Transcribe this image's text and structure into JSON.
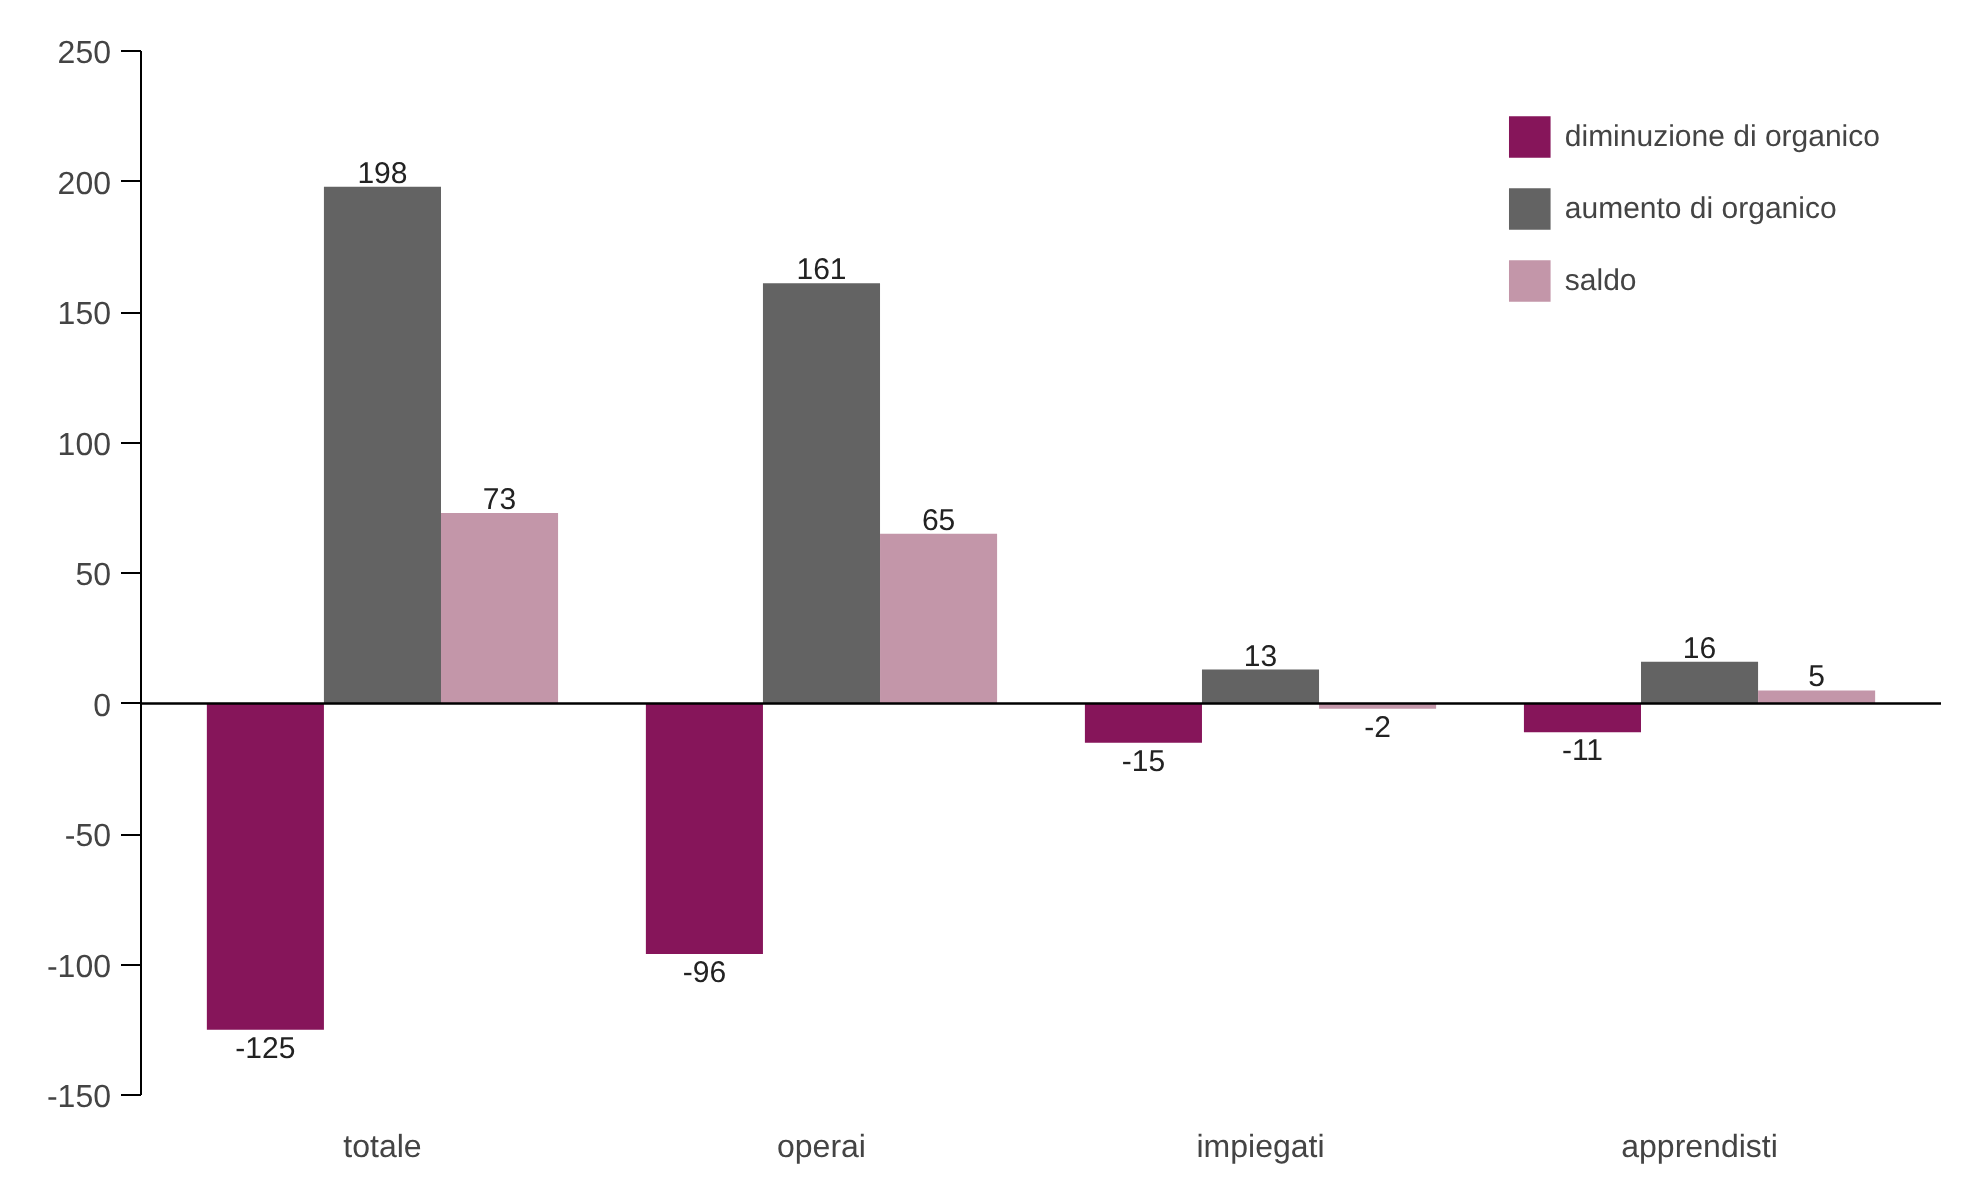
{
  "chart_data": {
    "type": "bar",
    "categories": [
      "totale",
      "operai",
      "impiegati",
      "apprendisti"
    ],
    "series": [
      {
        "name": "diminuzione di organico",
        "color": "#86155a",
        "values": [
          -125,
          -96,
          -15,
          -11
        ]
      },
      {
        "name": "aumento di organico",
        "color": "#636363",
        "values": [
          198,
          161,
          13,
          16
        ]
      },
      {
        "name": "saldo",
        "color": "#c396a9",
        "values": [
          73,
          65,
          -2,
          5
        ]
      }
    ],
    "ylim": [
      -150,
      250
    ],
    "yticks": [
      -150,
      -100,
      -50,
      0,
      50,
      100,
      150,
      200,
      250
    ],
    "ref_lines": [
      {
        "axis": "y",
        "value": 0,
        "color": "#000000"
      }
    ],
    "data_labels": true,
    "grid": false,
    "legend": "top right"
  }
}
